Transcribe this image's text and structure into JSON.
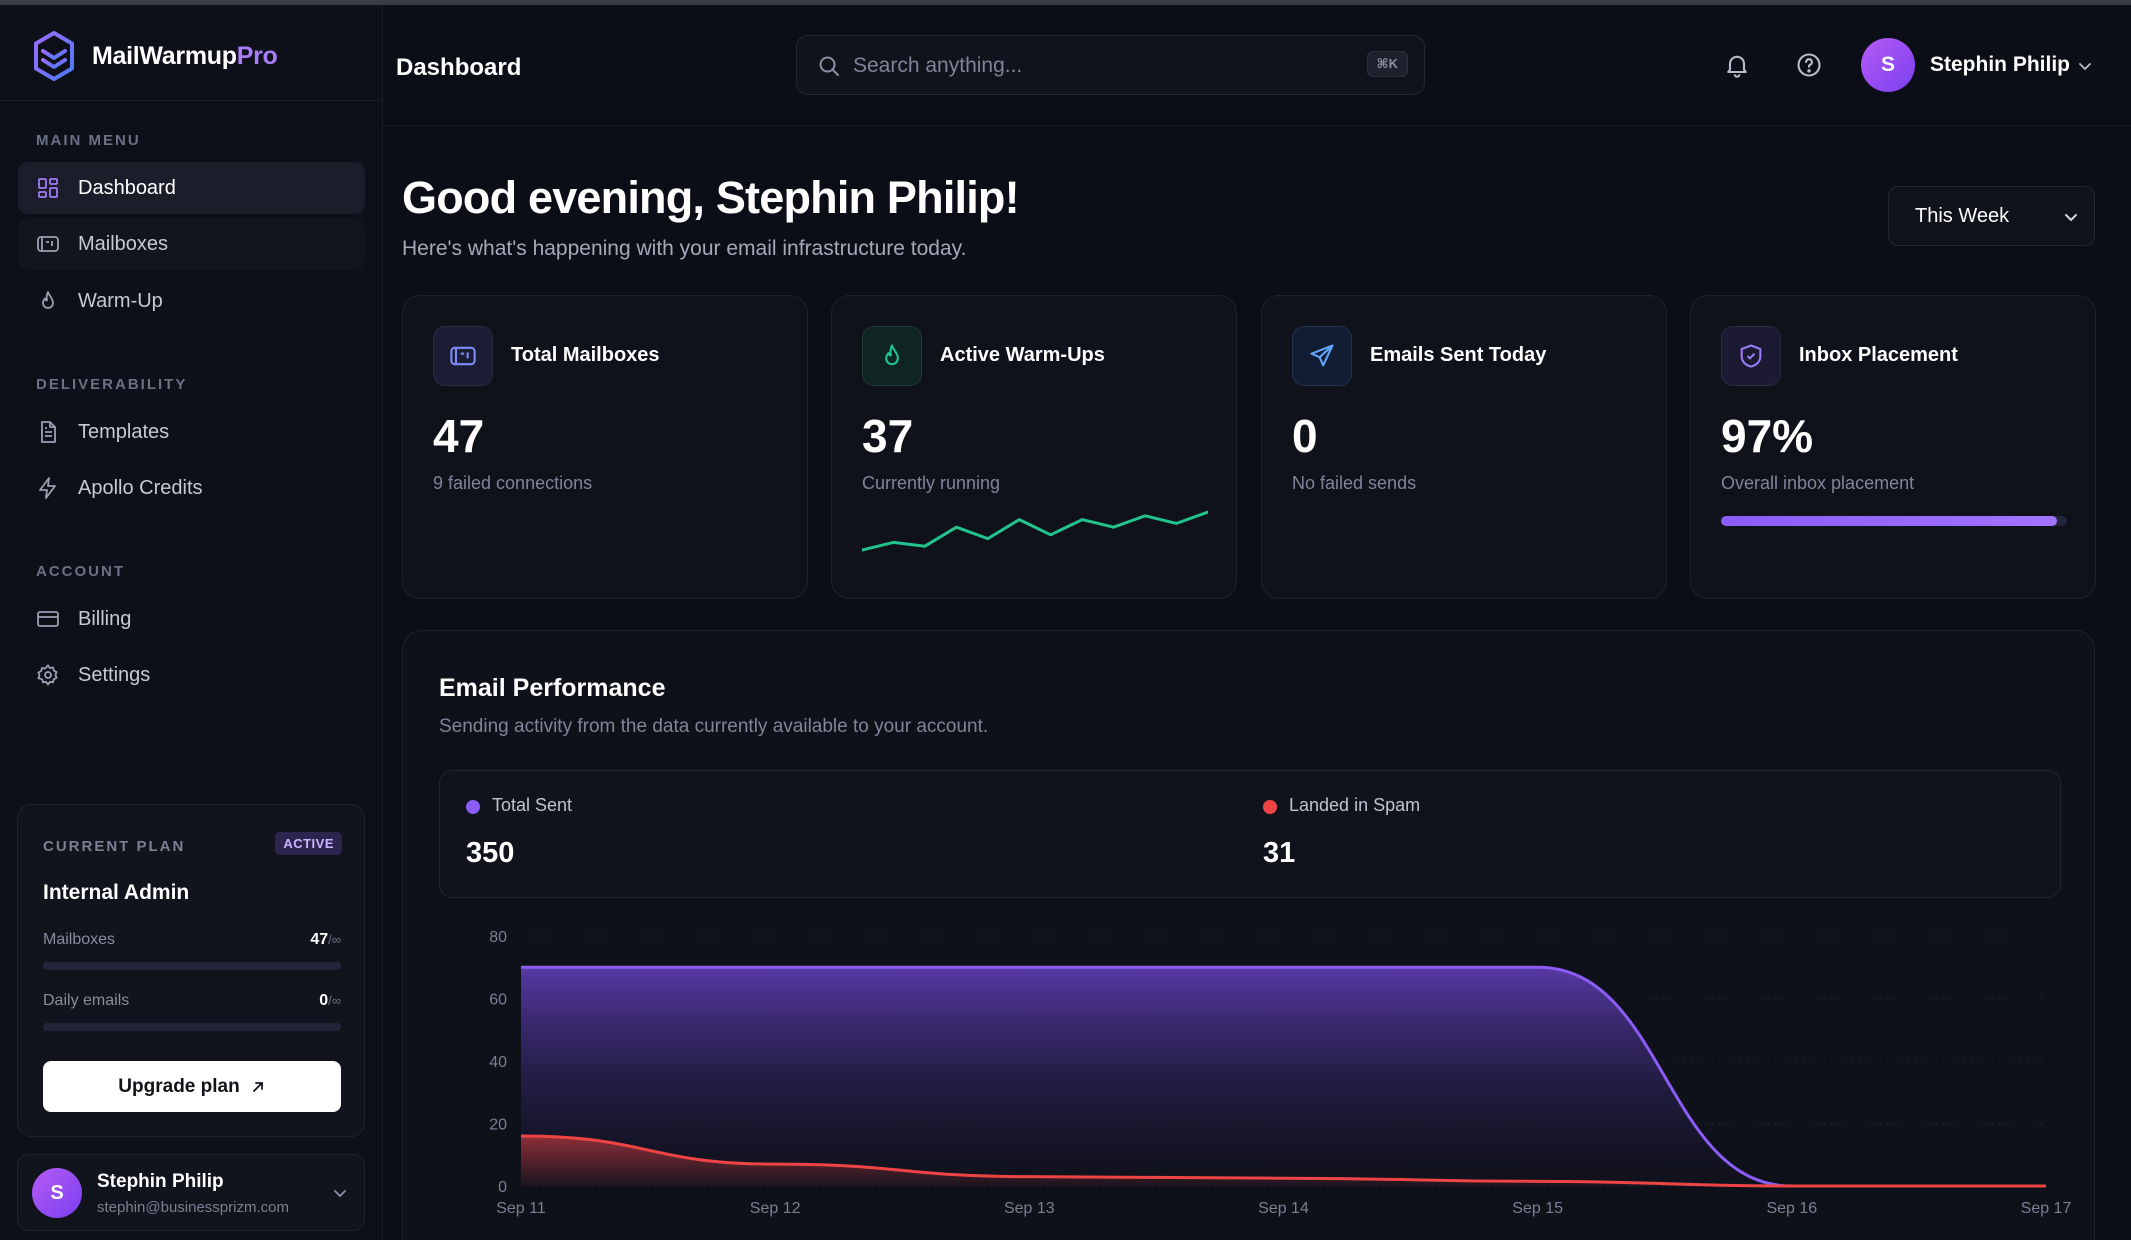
{
  "brand": {
    "name_main": "MailWarmup",
    "name_accent": "Pro"
  },
  "sidebar": {
    "sections": {
      "main": "MAIN MENU",
      "deliverability": "DELIVERABILITY",
      "account": "ACCOUNT"
    },
    "items": [
      {
        "label": "Dashboard",
        "icon": "grid-icon"
      },
      {
        "label": "Mailboxes",
        "icon": "mailbox-icon"
      },
      {
        "label": "Warm-Up",
        "icon": "flame-icon"
      },
      {
        "label": "Templates",
        "icon": "document-icon"
      },
      {
        "label": "Apollo Credits",
        "icon": "lightning-icon"
      },
      {
        "label": "Billing",
        "icon": "credit-card-icon"
      },
      {
        "label": "Settings",
        "icon": "gear-icon"
      }
    ],
    "plan": {
      "label": "CURRENT PLAN",
      "badge": "ACTIVE",
      "name": "Internal Admin",
      "mailboxes_label": "Mailboxes",
      "mailboxes_value": "47",
      "daily_label": "Daily emails",
      "daily_value": "0",
      "limit": "/∞",
      "upgrade_label": "Upgrade plan"
    },
    "user": {
      "initial": "S",
      "name": "Stephin Philip",
      "email": "stephin@businessprizm.com"
    }
  },
  "header": {
    "title": "Dashboard",
    "search_placeholder": "Search anything...",
    "shortcut": "⌘K",
    "user_initial": "S",
    "user_name": "Stephin Philip"
  },
  "main": {
    "greeting": "Good evening, Stephin Philip!",
    "subtitle": "Here's what's happening with your email infrastructure today.",
    "range": "This Week",
    "stats": [
      {
        "title": "Total Mailboxes",
        "value": "47",
        "sub": "9 failed connections",
        "icon": "mailbox-icon",
        "color": "#7c8cf8"
      },
      {
        "title": "Active Warm-Ups",
        "value": "37",
        "sub": "Currently running",
        "icon": "flame-icon",
        "color": "#22c38e",
        "sparkline": [
          3,
          5,
          4,
          9,
          6,
          11,
          7,
          11,
          9,
          12,
          10,
          13
        ]
      },
      {
        "title": "Emails Sent Today",
        "value": "0",
        "sub": "No failed sends",
        "icon": "send-icon",
        "color": "#60a5fa"
      },
      {
        "title": "Inbox Placement",
        "value": "97%",
        "sub": "Overall inbox placement",
        "icon": "shield-icon",
        "color": "#9b7af6",
        "progress": 0.97
      }
    ]
  },
  "performance": {
    "title": "Email Performance",
    "subtitle": "Sending activity from the data currently available to your account.",
    "legend": [
      {
        "name": "Total Sent",
        "value": "350",
        "color": "#8b5cf6"
      },
      {
        "name": "Landed in Spam",
        "value": "31",
        "color": "#ef4444"
      }
    ]
  },
  "chart_data": {
    "type": "area",
    "categories": [
      "Sep 11",
      "Sep 12",
      "Sep 13",
      "Sep 14",
      "Sep 15",
      "Sep 16",
      "Sep 17"
    ],
    "series": [
      {
        "name": "Total Sent",
        "values": [
          70,
          70,
          70,
          70,
          70,
          0,
          0
        ],
        "color": "#8b5cf6"
      },
      {
        "name": "Landed in Spam",
        "values": [
          16,
          7,
          3,
          2.5,
          1.5,
          0,
          0
        ],
        "color": "#ef4444"
      }
    ],
    "ylim": [
      0,
      80
    ],
    "yticks": [
      0,
      20,
      40,
      60,
      80
    ],
    "grid": true
  }
}
